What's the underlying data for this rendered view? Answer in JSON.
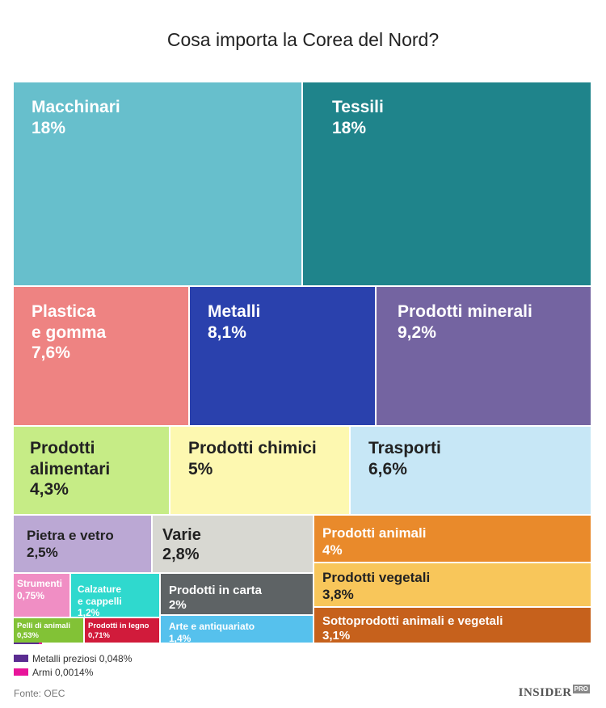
{
  "chart_data": {
    "type": "treemap",
    "title": "Cosa importa la Corea del Nord?",
    "unit": "%",
    "items": [
      {
        "name": "Macchinari",
        "value": 18,
        "label": "18%",
        "color": "#67bfcc",
        "text_color": "#ffffff"
      },
      {
        "name": "Tessili",
        "value": 18,
        "label": "18%",
        "color": "#1f848b",
        "text_color": "#ffffff"
      },
      {
        "name": "Plastica e gomma",
        "value": 7.6,
        "label": "7,6%",
        "color": "#ee8382",
        "text_color": "#ffffff"
      },
      {
        "name": "Metalli",
        "value": 8.1,
        "label": "8,1%",
        "color": "#2a41ad",
        "text_color": "#ffffff"
      },
      {
        "name": "Prodotti minerali",
        "value": 9.2,
        "label": "9,2%",
        "color": "#7464a1",
        "text_color": "#ffffff"
      },
      {
        "name": "Prodotti alimentari",
        "value": 4.3,
        "label": "4,3%",
        "color": "#c6ec86",
        "text_color": "#222222"
      },
      {
        "name": "Prodotti chimici",
        "value": 5,
        "label": "5%",
        "color": "#fdf8b0",
        "text_color": "#222222"
      },
      {
        "name": "Trasporti",
        "value": 6.6,
        "label": "6,6%",
        "color": "#c7e7f6",
        "text_color": "#222222"
      },
      {
        "name": "Pietra e vetro",
        "value": 2.5,
        "label": "2,5%",
        "color": "#bba8d4",
        "text_color": "#222222"
      },
      {
        "name": "Varie",
        "value": 2.8,
        "label": "2,8%",
        "color": "#d8d8d2",
        "text_color": "#222222"
      },
      {
        "name": "Strumenti",
        "value": 0.75,
        "label": "0,75%",
        "color": "#f08ec4",
        "text_color": "#ffffff"
      },
      {
        "name": "Calzature e cappelli",
        "value": 1.2,
        "label": "1,2%",
        "color": "#2fd9ce",
        "text_color": "#ffffff"
      },
      {
        "name": "Prodotti in carta",
        "value": 2,
        "label": "2%",
        "color": "#5e6365",
        "text_color": "#ffffff"
      },
      {
        "name": "Pelli di animali",
        "value": 0.53,
        "label": "0,53%",
        "color": "#82c236",
        "text_color": "#ffffff"
      },
      {
        "name": "Prodotti in legno",
        "value": 0.71,
        "label": "0,71%",
        "color": "#d11b3b",
        "text_color": "#ffffff"
      },
      {
        "name": "Arte e antiquariato",
        "value": 1.4,
        "label": "1,4%",
        "color": "#56c1ed",
        "text_color": "#ffffff"
      },
      {
        "name": "Prodotti animali",
        "value": 4,
        "label": "4%",
        "color": "#e98a2b",
        "text_color": "#ffffff"
      },
      {
        "name": "Prodotti vegetali",
        "value": 3.8,
        "label": "3,8%",
        "color": "#f8c65a",
        "text_color": "#222222"
      },
      {
        "name": "Sottoprodotti animali e vegetali",
        "value": 3.1,
        "label": "3,1%",
        "color": "#c6611c",
        "text_color": "#ffffff"
      },
      {
        "name": "Metalli preziosi",
        "value": 0.048,
        "label": "0,048%",
        "color": "#5a2c91",
        "text_color": "#ffffff"
      },
      {
        "name": "Armi",
        "value": 0.0014,
        "label": "0,0014%",
        "color": "#e8149a",
        "text_color": "#ffffff"
      }
    ],
    "legend": [
      {
        "text": "Metalli preziosi 0,048%",
        "color": "#5a2c91"
      },
      {
        "text": "Armi 0,0014%",
        "color": "#e8149a"
      }
    ]
  },
  "footer": {
    "source": "Fonte: OEC",
    "brand": "INSIDER",
    "brand_badge": "PRO"
  }
}
